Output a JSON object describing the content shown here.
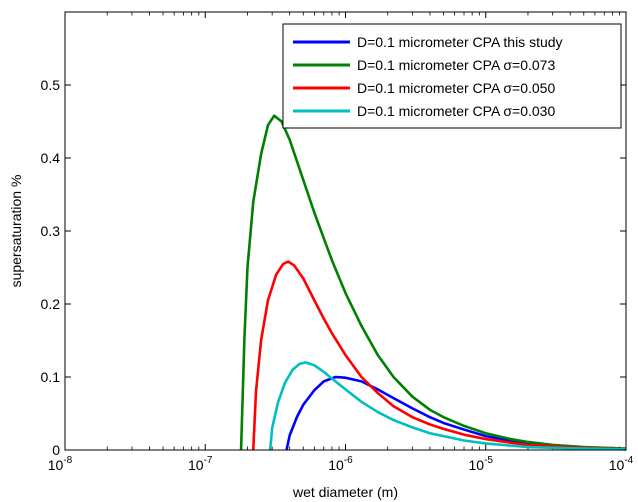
{
  "chart_data": {
    "type": "line",
    "title": "",
    "xlabel": "wet diameter (m)",
    "ylabel": "supersaturation %",
    "x_scale": "log",
    "xlim": [
      1e-08,
      0.0001
    ],
    "ylim": [
      0,
      0.6
    ],
    "x_ticks": [
      {
        "value": 1e-08,
        "base": "10",
        "exp": "-8"
      },
      {
        "value": 1e-07,
        "base": "10",
        "exp": "-7"
      },
      {
        "value": 1e-06,
        "base": "10",
        "exp": "-6"
      },
      {
        "value": 1e-05,
        "base": "10",
        "exp": "-5"
      },
      {
        "value": 0.0001,
        "base": "10",
        "exp": "-4"
      }
    ],
    "y_ticks": [
      {
        "value": 0,
        "label": "0"
      },
      {
        "value": 0.1,
        "label": "0.1"
      },
      {
        "value": 0.2,
        "label": "0.2"
      },
      {
        "value": 0.3,
        "label": "0.3"
      },
      {
        "value": 0.4,
        "label": "0.4"
      },
      {
        "value": 0.5,
        "label": "0.5"
      }
    ],
    "grid": false,
    "legend_position": "top-right",
    "series": [
      {
        "name": "D=0.1 micrometer CPA this study",
        "color": "#0000ff",
        "x": [
          3.8e-07,
          4e-07,
          4.5e-07,
          5e-07,
          6e-07,
          7e-07,
          8.5e-07,
          1e-06,
          1.3e-06,
          1.7e-06,
          2.2e-06,
          3e-06,
          4e-06,
          5e-06,
          7e-06,
          1e-05,
          1.5e-05,
          2e-05,
          3e-05,
          5e-05,
          0.0001
        ],
        "y": [
          0.0,
          0.02,
          0.045,
          0.062,
          0.082,
          0.094,
          0.1,
          0.099,
          0.094,
          0.083,
          0.071,
          0.057,
          0.045,
          0.037,
          0.028,
          0.019,
          0.013,
          0.009,
          0.006,
          0.003,
          0.001
        ]
      },
      {
        "name": "D=0.1 micrometer CPA σ=0.073",
        "color": "#008000",
        "x": [
          1.8e-07,
          1.9e-07,
          2e-07,
          2.2e-07,
          2.5e-07,
          2.8e-07,
          3.1e-07,
          3.5e-07,
          4e-07,
          5e-07,
          6e-07,
          7e-07,
          8e-07,
          1e-06,
          1.3e-06,
          1.7e-06,
          2.2e-06,
          3e-06,
          4e-06,
          5e-06,
          7e-06,
          1e-05,
          1.5e-05,
          2e-05,
          3e-05,
          5e-05,
          0.0001
        ],
        "y": [
          0.0,
          0.15,
          0.25,
          0.34,
          0.405,
          0.445,
          0.458,
          0.45,
          0.425,
          0.37,
          0.325,
          0.29,
          0.26,
          0.215,
          0.17,
          0.13,
          0.1,
          0.073,
          0.055,
          0.045,
          0.033,
          0.023,
          0.015,
          0.011,
          0.007,
          0.004,
          0.002
        ]
      },
      {
        "name": "D=0.1 micrometer CPA σ=0.050",
        "color": "#ff0000",
        "x": [
          2.2e-07,
          2.3e-07,
          2.5e-07,
          2.8e-07,
          3.2e-07,
          3.6e-07,
          3.9e-07,
          4.3e-07,
          5e-07,
          6e-07,
          7e-07,
          8e-07,
          1e-06,
          1.3e-06,
          1.7e-06,
          2.2e-06,
          3e-06,
          4e-06,
          5e-06,
          7e-06,
          1e-05,
          1.5e-05,
          2e-05,
          3e-05,
          5e-05,
          0.0001
        ],
        "y": [
          0.0,
          0.08,
          0.15,
          0.205,
          0.24,
          0.255,
          0.258,
          0.253,
          0.235,
          0.205,
          0.18,
          0.16,
          0.13,
          0.1,
          0.078,
          0.06,
          0.045,
          0.035,
          0.029,
          0.021,
          0.015,
          0.01,
          0.007,
          0.005,
          0.003,
          0.001
        ]
      },
      {
        "name": "D=0.1 micrometer CPA σ=0.030",
        "color": "#00bfbf",
        "x": [
          2.9e-07,
          3e-07,
          3.3e-07,
          3.7e-07,
          4.2e-07,
          4.7e-07,
          5.2e-07,
          6e-07,
          7e-07,
          8e-07,
          1e-06,
          1.3e-06,
          1.7e-06,
          2.2e-06,
          3e-06,
          4e-06,
          5e-06,
          7e-06,
          1e-05,
          1.5e-05,
          2e-05,
          3e-05,
          5e-05,
          0.0001
        ],
        "y": [
          0.0,
          0.03,
          0.065,
          0.092,
          0.11,
          0.118,
          0.12,
          0.116,
          0.107,
          0.098,
          0.083,
          0.066,
          0.052,
          0.041,
          0.031,
          0.023,
          0.019,
          0.013,
          0.009,
          0.006,
          0.004,
          0.003,
          0.002,
          0.001
        ]
      }
    ]
  }
}
